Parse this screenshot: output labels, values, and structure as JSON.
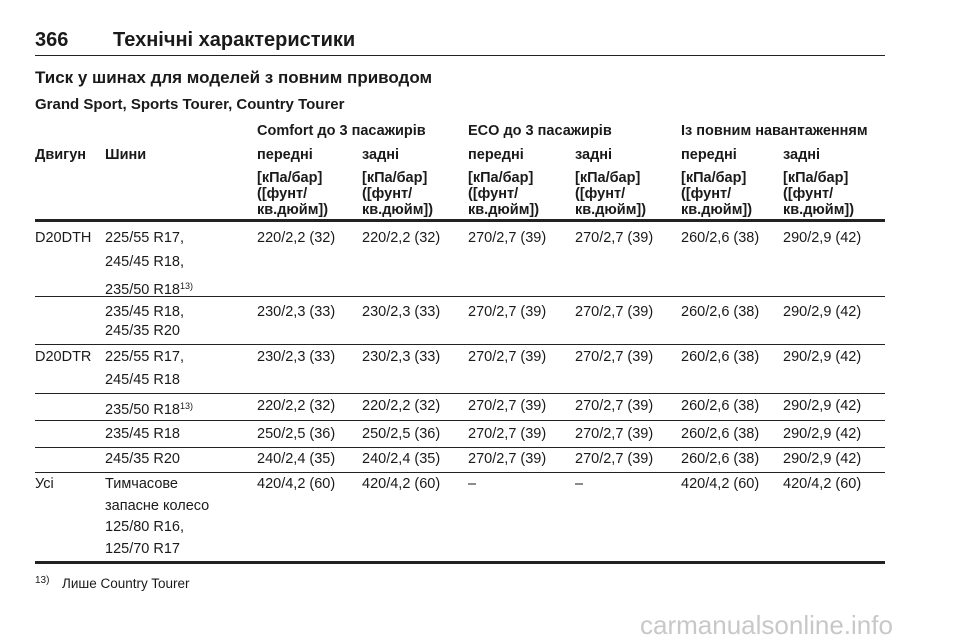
{
  "header": {
    "page_number": "366",
    "title": "Технічні характеристики"
  },
  "section_title": "Тиск у шинах для моделей з повним приводом",
  "models": "Grand Sport, Sports Tourer, Country Tourer",
  "table": {
    "group_headers": [
      "Comfort до 3 пасажирів",
      "ECO до 3 пасажирів",
      "Із повним навантаженням"
    ],
    "columns": [
      "Двигун",
      "Шини",
      "передні",
      "задні",
      "передні",
      "задні",
      "передні",
      "задні"
    ],
    "units": [
      [
        "[кПа/бар]",
        "([фунт/",
        "кв.дюйм])"
      ],
      [
        "[кПа/бар]",
        "([фунт/",
        "кв.дюйм])"
      ],
      [
        "[кПа/бар]",
        "([фунт/",
        "кв.дюйм])"
      ],
      [
        "[кПа/бар]",
        "([фунт/",
        "кв.дюйм])"
      ],
      [
        "[кПа/бар]",
        "([фунт/",
        "кв.дюйм])"
      ],
      [
        "[кПа/бар]",
        "([фунт/",
        "кв.дюйм])"
      ]
    ],
    "rows": [
      {
        "engine": "D20DTH",
        "tires": [
          "225/55 R17,",
          "245/45 R18,",
          "235/50 R18"
        ],
        "note": "13)",
        "values": [
          "220/2,2 (32)",
          "220/2,2 (32)",
          "270/2,7 (39)",
          "270/2,7 (39)",
          "260/2,6 (38)",
          "290/2,9 (42)"
        ]
      },
      {
        "tires": [
          "235/45 R18,",
          "245/35 R20"
        ],
        "values": [
          "230/2,3 (33)",
          "230/2,3 (33)",
          "270/2,7 (39)",
          "270/2,7 (39)",
          "260/2,6 (38)",
          "290/2,9 (42)"
        ]
      },
      {
        "engine": "D20DTR",
        "tires": [
          "225/55 R17,",
          "245/45 R18"
        ],
        "values": [
          "230/2,3 (33)",
          "230/2,3 (33)",
          "270/2,7 (39)",
          "270/2,7 (39)",
          "260/2,6 (38)",
          "290/2,9 (42)"
        ]
      },
      {
        "tires": [
          "235/50 R18"
        ],
        "note": "13)",
        "values": [
          "220/2,2 (32)",
          "220/2,2 (32)",
          "270/2,7 (39)",
          "270/2,7 (39)",
          "260/2,6 (38)",
          "290/2,9 (42)"
        ]
      },
      {
        "tires": [
          "235/45 R18"
        ],
        "values": [
          "250/2,5 (36)",
          "250/2,5 (36)",
          "270/2,7 (39)",
          "270/2,7 (39)",
          "260/2,6 (38)",
          "290/2,9 (42)"
        ]
      },
      {
        "tires": [
          "245/35 R20"
        ],
        "values": [
          "240/2,4 (35)",
          "240/2,4 (35)",
          "270/2,7 (39)",
          "270/2,7 (39)",
          "260/2,6 (38)",
          "290/2,9 (42)"
        ]
      },
      {
        "engine": "Усі",
        "tires": [
          "Тимчасове",
          "запасне колесо",
          "125/80 R16,",
          "125/70 R17"
        ],
        "values": [
          "420/4,2 (60)",
          "420/4,2 (60)",
          "–",
          "–",
          "420/4,2 (60)",
          "420/4,2 (60)"
        ]
      }
    ]
  },
  "footnote": {
    "marker": "13)",
    "text": "Лише Country Tourer"
  },
  "watermark": "carmanualsonline.info"
}
